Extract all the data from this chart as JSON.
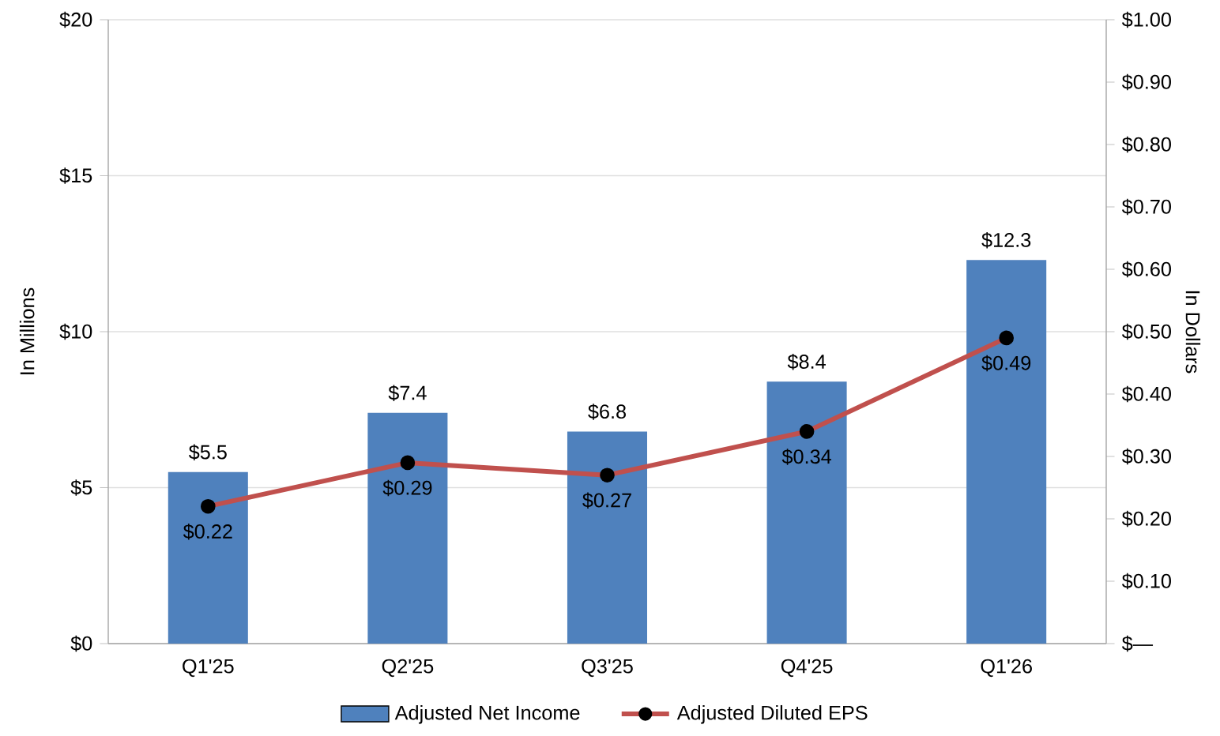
{
  "chart_data": {
    "type": "bar",
    "categories": [
      "Q1'25",
      "Q2'25",
      "Q3'25",
      "Q4'25",
      "Q1'26"
    ],
    "ylabel": "In Millions",
    "y2label": "In Dollars",
    "ylim": [
      0,
      20
    ],
    "yticks": [
      {
        "value": 0,
        "label": "$0"
      },
      {
        "value": 5,
        "label": "$5"
      },
      {
        "value": 10,
        "label": "$10"
      },
      {
        "value": 15,
        "label": "$15"
      },
      {
        "value": 20,
        "label": "$20"
      }
    ],
    "y2lim": [
      0,
      1
    ],
    "y2ticks": [
      {
        "value": 0,
        "label": "$—"
      },
      {
        "value": 0.1,
        "label": "$0.10"
      },
      {
        "value": 0.2,
        "label": "$0.20"
      },
      {
        "value": 0.3,
        "label": "$0.30"
      },
      {
        "value": 0.4,
        "label": "$0.40"
      },
      {
        "value": 0.5,
        "label": "$0.50"
      },
      {
        "value": 0.6,
        "label": "$0.60"
      },
      {
        "value": 0.7,
        "label": "$0.70"
      },
      {
        "value": 0.8,
        "label": "$0.80"
      },
      {
        "value": 0.9,
        "label": "$0.90"
      },
      {
        "value": 1,
        "label": "$1.00"
      }
    ],
    "grid": "y",
    "legend": "bottom",
    "series": [
      {
        "name": "Adjusted Net Income",
        "color": "#4f81bd",
        "values": [
          5.5,
          7.4,
          6.8,
          8.4,
          12.3
        ],
        "value_labels": [
          "$5.5",
          "$7.4",
          "$6.8",
          "$8.4",
          "$12.3"
        ]
      },
      {
        "name": "Adjusted Diluted EPS",
        "type": "line",
        "axis": "y2",
        "color": "#c0504d",
        "marker": "circle",
        "values": [
          0.22,
          0.29,
          0.27,
          0.34,
          0.49
        ],
        "value_labels": [
          "$0.22",
          "$0.29",
          "$0.27",
          "$0.34",
          "$0.49"
        ]
      }
    ]
  }
}
